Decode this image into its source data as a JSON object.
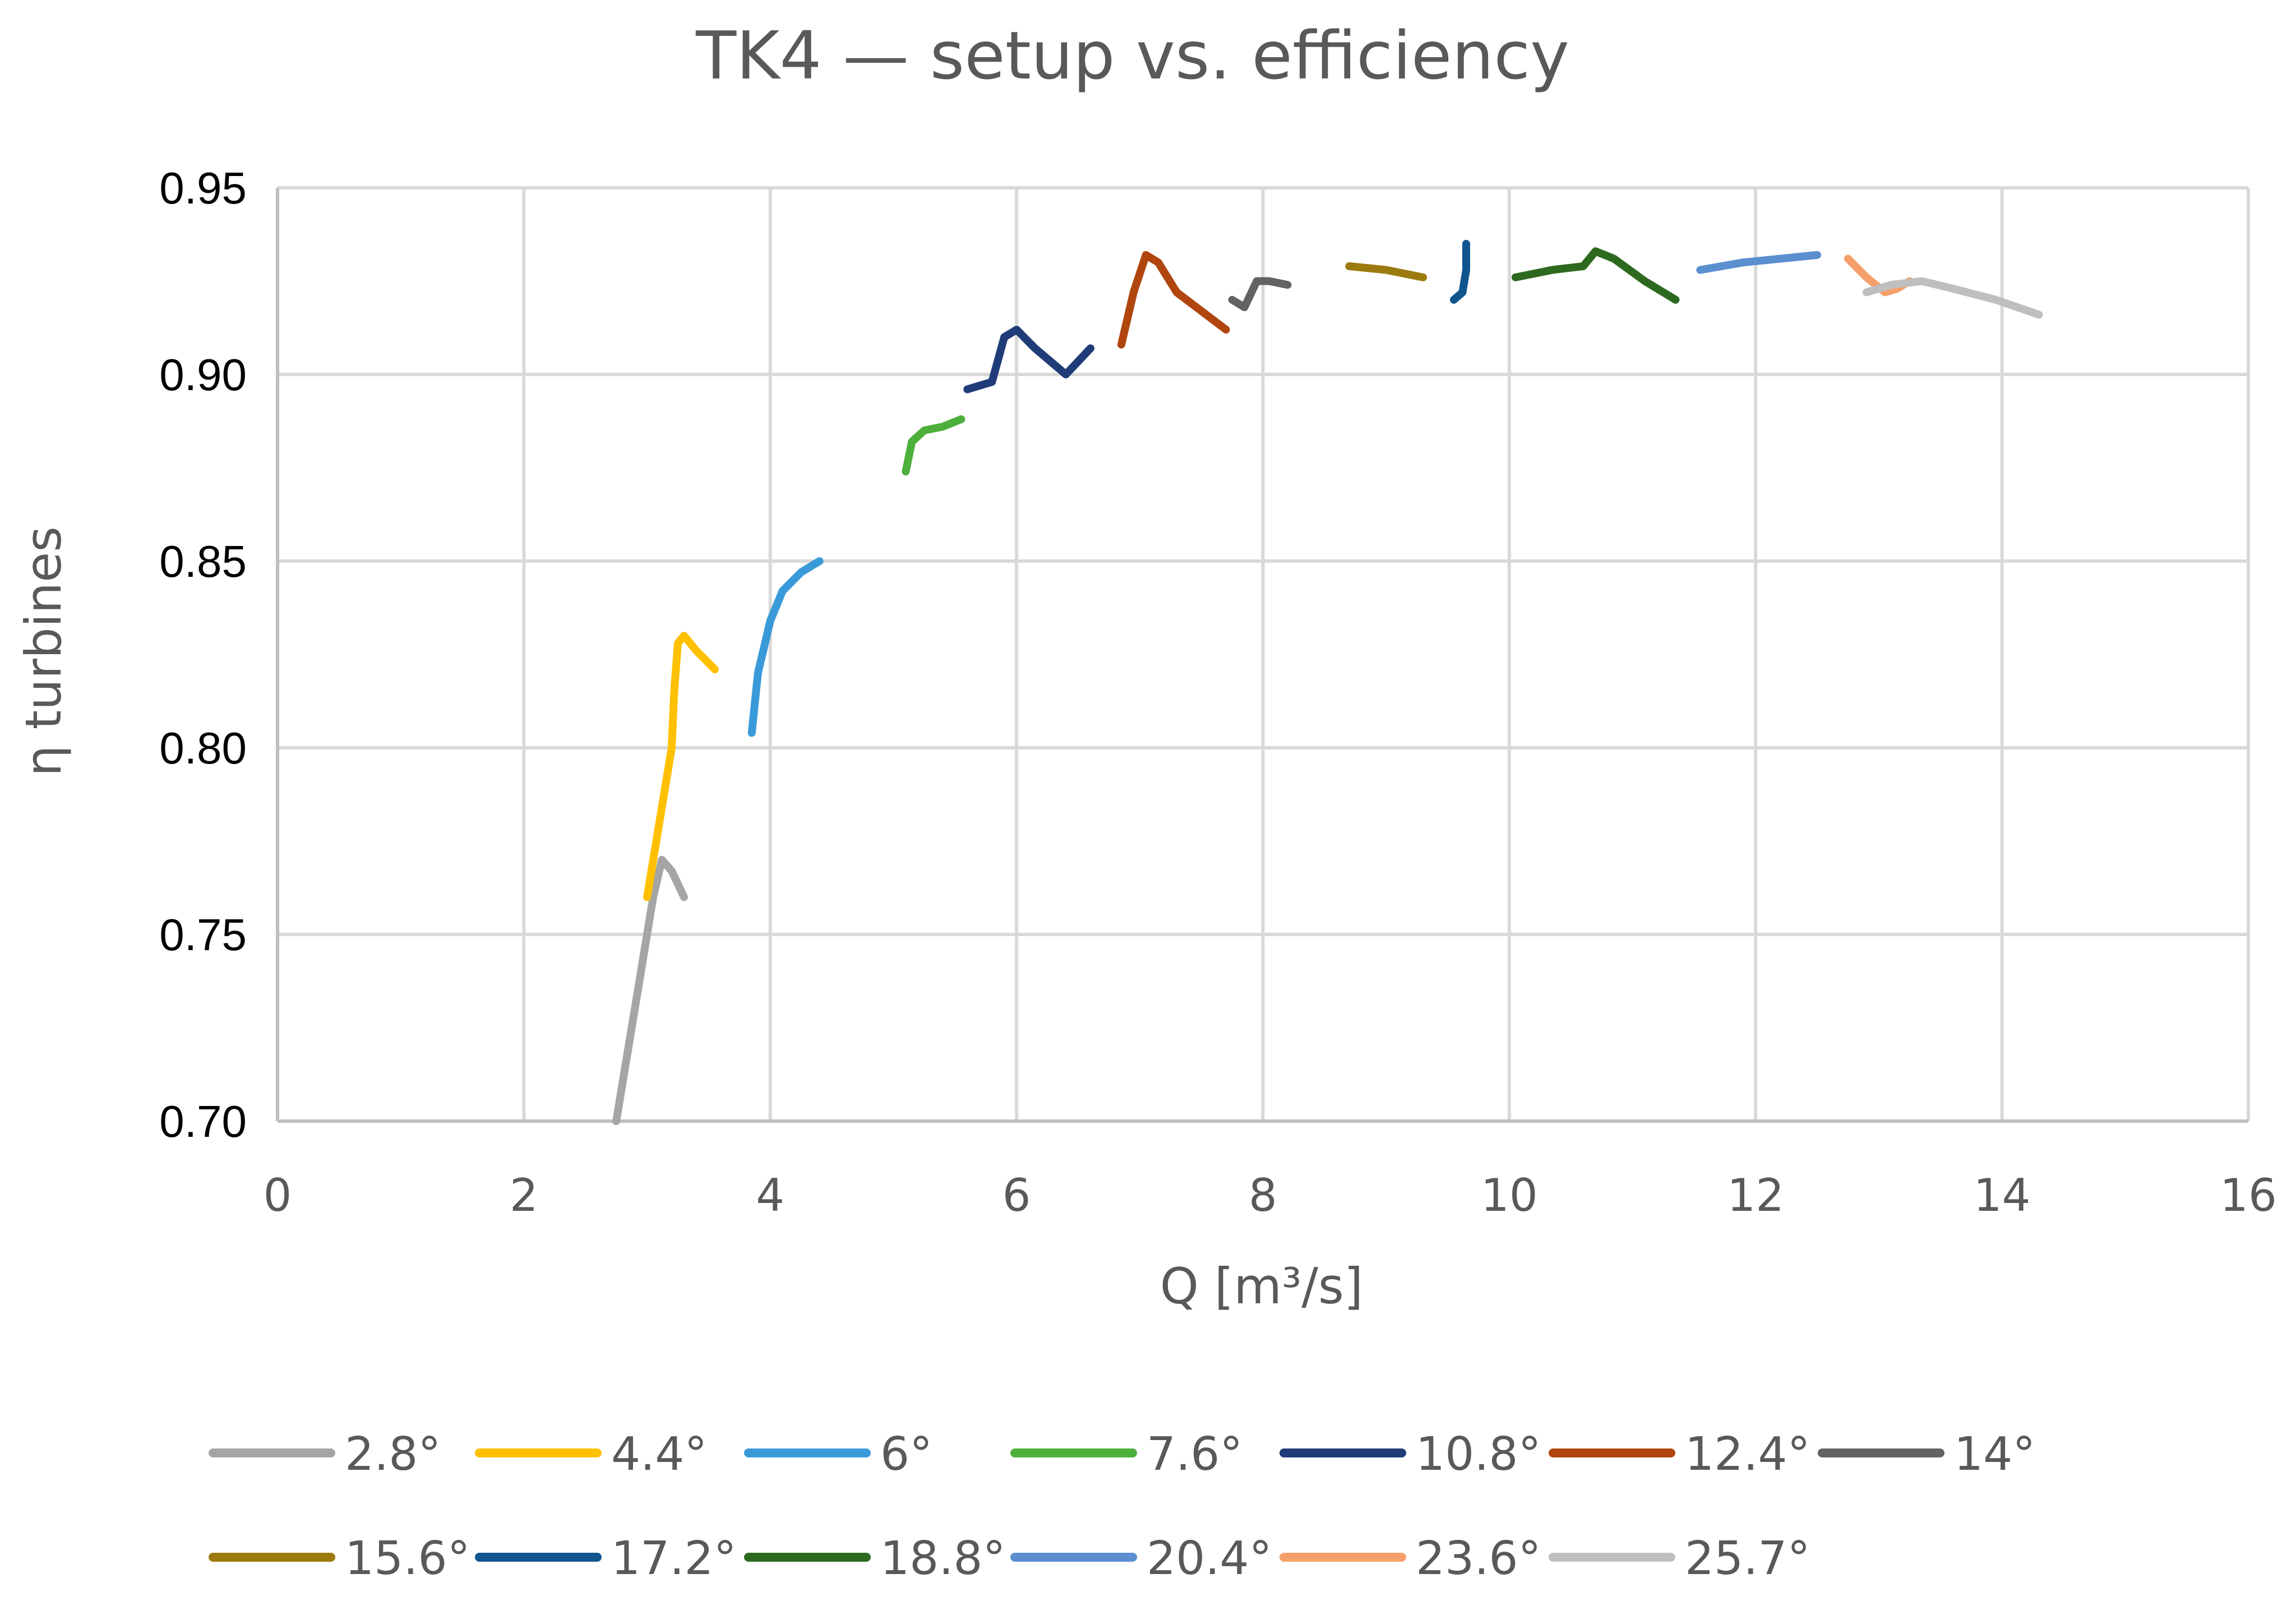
{
  "chart_data": {
    "type": "line",
    "title": "TK4 — setup vs. efficiency",
    "xlabel": "Q [m³/s]",
    "ylabel": "η turbines",
    "xlim": [
      0,
      16
    ],
    "ylim": [
      0.7,
      0.95
    ],
    "x_ticks": [
      0,
      2,
      4,
      6,
      8,
      10,
      12,
      14,
      16
    ],
    "x_tick_labels": [
      "0",
      "2",
      "4",
      "6",
      "8",
      "10",
      "12",
      "14",
      "16"
    ],
    "y_ticks": [
      0.7,
      0.75,
      0.8,
      0.85,
      0.9,
      0.95
    ],
    "y_tick_labels": [
      "0.70",
      "0.75",
      "0.80",
      "0.85",
      "0.90",
      "0.95"
    ],
    "grid": true,
    "legend_position": "bottom",
    "series": [
      {
        "name": "2.8°",
        "color": "#a5a5a5",
        "x": [
          2.75,
          2.85,
          2.95,
          3.05,
          3.12,
          3.2,
          3.3
        ],
        "y": [
          0.7,
          0.72,
          0.74,
          0.76,
          0.77,
          0.767,
          0.76
        ]
      },
      {
        "name": "4.4°",
        "color": "#ffc000",
        "x": [
          3.0,
          3.1,
          3.2,
          3.22,
          3.25,
          3.3,
          3.4,
          3.55
        ],
        "y": [
          0.76,
          0.78,
          0.8,
          0.815,
          0.828,
          0.83,
          0.826,
          0.821
        ]
      },
      {
        "name": "6°",
        "color": "#3a9ad9",
        "x": [
          3.85,
          3.9,
          4.0,
          4.1,
          4.25,
          4.4
        ],
        "y": [
          0.804,
          0.82,
          0.834,
          0.842,
          0.847,
          0.85
        ]
      },
      {
        "name": "7.6°",
        "color": "#4daf3c",
        "x": [
          5.1,
          5.15,
          5.25,
          5.4,
          5.55
        ],
        "y": [
          0.874,
          0.882,
          0.885,
          0.886,
          0.888
        ]
      },
      {
        "name": "10.8°",
        "color": "#1f3c78",
        "x": [
          5.6,
          5.8,
          5.9,
          6.0,
          6.15,
          6.4,
          6.6
        ],
        "y": [
          0.896,
          0.898,
          0.91,
          0.912,
          0.907,
          0.9,
          0.907
        ]
      },
      {
        "name": "12.4°",
        "color": "#b0450e",
        "x": [
          6.85,
          6.95,
          7.05,
          7.15,
          7.3,
          7.5,
          7.7
        ],
        "y": [
          0.908,
          0.922,
          0.932,
          0.93,
          0.922,
          0.917,
          0.912
        ]
      },
      {
        "name": "14°",
        "color": "#636363",
        "x": [
          7.75,
          7.85,
          7.95,
          8.05,
          8.2
        ],
        "y": [
          0.92,
          0.918,
          0.925,
          0.925,
          0.924
        ]
      },
      {
        "name": "15.6°",
        "color": "#9c7a0e",
        "x": [
          8.7,
          9.0,
          9.3
        ],
        "y": [
          0.929,
          0.928,
          0.926
        ]
      },
      {
        "name": "17.2°",
        "color": "#11558f",
        "x": [
          9.55,
          9.62,
          9.65,
          9.65
        ],
        "y": [
          0.92,
          0.922,
          0.928,
          0.935
        ]
      },
      {
        "name": "18.8°",
        "color": "#2d6a1f",
        "x": [
          10.05,
          10.35,
          10.6,
          10.7,
          10.85,
          11.1,
          11.35
        ],
        "y": [
          0.926,
          0.928,
          0.929,
          0.933,
          0.931,
          0.925,
          0.92
        ]
      },
      {
        "name": "20.4°",
        "color": "#5b8fd0",
        "x": [
          11.55,
          11.9,
          12.2,
          12.5
        ],
        "y": [
          0.928,
          0.93,
          0.931,
          0.932
        ]
      },
      {
        "name": "23.6°",
        "color": "#f4a06a",
        "x": [
          12.75,
          12.9,
          13.05,
          13.15,
          13.25
        ],
        "y": [
          0.931,
          0.926,
          0.922,
          0.923,
          0.925
        ]
      },
      {
        "name": "25.7°",
        "color": "#bfbfbf",
        "x": [
          12.9,
          13.1,
          13.35,
          13.6,
          13.95,
          14.3
        ],
        "y": [
          0.922,
          0.924,
          0.925,
          0.923,
          0.92,
          0.916
        ]
      }
    ]
  }
}
